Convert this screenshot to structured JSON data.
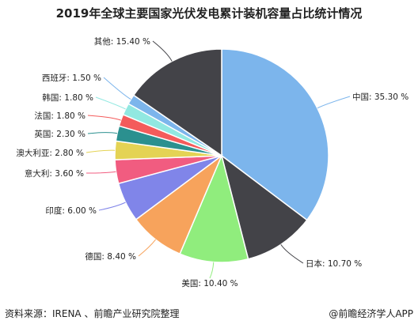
{
  "header": {
    "title": "2019年全球主要国家光伏发电累计装机容量占比统计情况"
  },
  "footer": {
    "source": "资料来源：IRENA 、前瞻产业研究院整理",
    "brand": "@前瞻经济学人APP"
  },
  "chart_data": {
    "type": "pie",
    "title": "2019年全球主要国家光伏发电累计装机容量占比统计情况",
    "start": "12 o'clock, clockwise",
    "slices": [
      {
        "label": "中国",
        "value": 35.3,
        "text": "中国: 35.30 %",
        "color": "#7cb5ec"
      },
      {
        "label": "日本",
        "value": 10.7,
        "text": "日本: 10.70 %",
        "color": "#434348"
      },
      {
        "label": "美国",
        "value": 10.4,
        "text": "美国: 10.40 %",
        "color": "#90ed7d"
      },
      {
        "label": "德国",
        "value": 8.4,
        "text": "德国: 8.40 %",
        "color": "#f7a35c"
      },
      {
        "label": "印度",
        "value": 6.0,
        "text": "印度: 6.00 %",
        "color": "#8085e9"
      },
      {
        "label": "意大利",
        "value": 3.6,
        "text": "意大利: 3.60 %",
        "color": "#f15c80"
      },
      {
        "label": "澳大利亚",
        "value": 2.8,
        "text": "澳大利亚: 2.80 %",
        "color": "#e4d354"
      },
      {
        "label": "英国",
        "value": 2.3,
        "text": "英国: 2.30 %",
        "color": "#2b908f"
      },
      {
        "label": "法国",
        "value": 1.8,
        "text": "法国: 1.80 %",
        "color": "#f45b5b"
      },
      {
        "label": "韩国",
        "value": 1.8,
        "text": "韩国: 1.80 %",
        "color": "#91e8e1"
      },
      {
        "label": "西班牙",
        "value": 1.5,
        "text": "西班牙: 1.50 %",
        "color": "#7cb5ec"
      },
      {
        "label": "其他",
        "value": 15.4,
        "text": "其他: 15.40 %",
        "color": "#434348"
      }
    ]
  }
}
